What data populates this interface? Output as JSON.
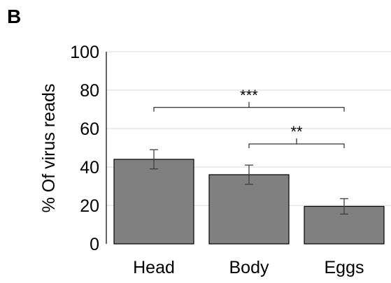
{
  "panel_label": "B",
  "chart_data": {
    "type": "bar",
    "categories": [
      "Head",
      "Body",
      "Eggs"
    ],
    "values": [
      44,
      36,
      19.5
    ],
    "errors": [
      5,
      5,
      4
    ],
    "ylabel": "% Of virus reads",
    "ylim": [
      0,
      100
    ],
    "yticks": [
      "0",
      "20",
      "40",
      "60",
      "80",
      "100"
    ],
    "grid": true,
    "significance": [
      {
        "from": 0,
        "to": 2,
        "label": "***",
        "y": 71
      },
      {
        "from": 1,
        "to": 2,
        "label": "**",
        "y": 52
      }
    ],
    "colors": {
      "bar": "#808080",
      "bar_edge": "#000000",
      "error": "#404040",
      "grid": "#d9d9d9"
    }
  }
}
